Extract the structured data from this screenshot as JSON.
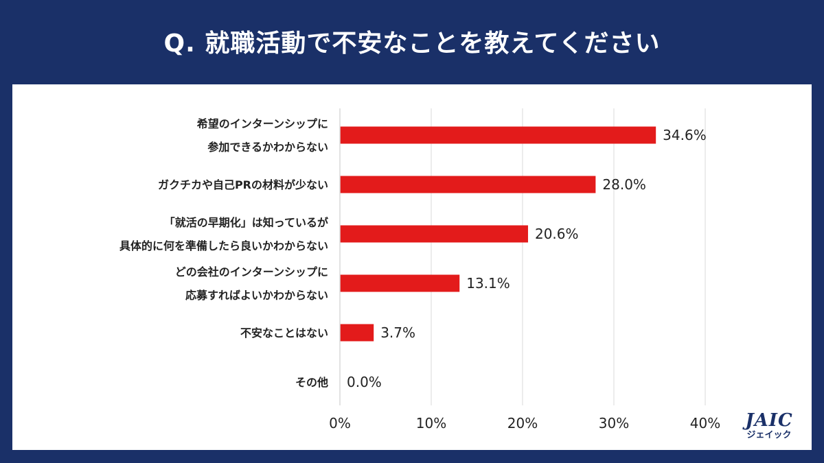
{
  "title": "Q. 就職活動で不安なことを教えてください",
  "logo": {
    "main": "JAIC",
    "sub": "ジェイック"
  },
  "colors": {
    "background": "#1a3068",
    "bar": "#e31b1b",
    "grid": "#d9d9d9",
    "text": "#222222"
  },
  "chart_data": {
    "type": "bar",
    "orientation": "horizontal",
    "categories": [
      [
        "希望のインターンシップに",
        "参加できるかわからない"
      ],
      [
        "ガクチカや自己PRの材料が少ない"
      ],
      [
        "「就活の早期化」は知っているが",
        "具体的に何を準備したら良いかわからない"
      ],
      [
        "どの会社のインターンシップに",
        "応募すればよいかわからない"
      ],
      [
        "不安なことはない"
      ],
      [
        "その他"
      ]
    ],
    "values": [
      34.6,
      28.0,
      20.6,
      13.1,
      3.7,
      0.0
    ],
    "value_labels": [
      "34.6%",
      "28.0%",
      "20.6%",
      "13.1%",
      "3.7%",
      "0.0%"
    ],
    "xlim": [
      0,
      40
    ],
    "xticks": [
      0,
      10,
      20,
      30,
      40
    ],
    "xtick_labels": [
      "0%",
      "10%",
      "20%",
      "30%",
      "40%"
    ],
    "grid": true,
    "legend": "none"
  }
}
